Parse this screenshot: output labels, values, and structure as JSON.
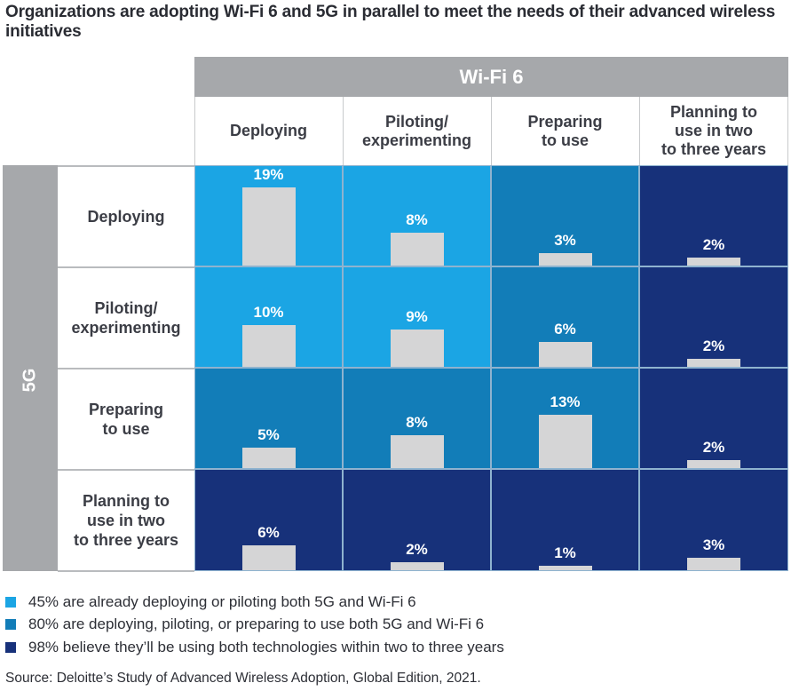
{
  "title": "Organizations are adopting Wi-Fi 6 and 5G in parallel to meet the needs of their advanced wireless initiatives",
  "colors": {
    "header_gray": "#a6a8ab",
    "bar_gray": "#d5d5d6",
    "tier1_light_blue": "#1ba5e4",
    "tier2_mid_blue": "#127db8",
    "tier3_dark_navy": "#17317a"
  },
  "chart_data": {
    "type": "heatmap",
    "title": "Organizations are adopting Wi-Fi 6 and 5G in parallel to meet the needs of their advanced wireless initiatives",
    "x_axis_title": "Wi-Fi 6",
    "y_axis_title": "5G",
    "x_categories": [
      "Deploying",
      "Piloting/\nexperimenting",
      "Preparing\nto use",
      "Planning to\nuse in two\nto three years"
    ],
    "y_categories": [
      "Deploying",
      "Piloting/\nexperimenting",
      "Preparing\nto use",
      "Planning to\nuse in two\nto three years"
    ],
    "unit": "%",
    "values": [
      [
        19,
        8,
        3,
        2
      ],
      [
        10,
        9,
        6,
        2
      ],
      [
        5,
        8,
        13,
        2
      ],
      [
        6,
        2,
        1,
        3
      ]
    ],
    "labels": [
      [
        "19%",
        "8%",
        "3%",
        "2%"
      ],
      [
        "10%",
        "9%",
        "6%",
        "2%"
      ],
      [
        "5%",
        "8%",
        "13%",
        "2%"
      ],
      [
        "6%",
        "2%",
        "1%",
        "3%"
      ]
    ],
    "cell_tier": [
      [
        1,
        1,
        2,
        3
      ],
      [
        1,
        1,
        2,
        3
      ],
      [
        2,
        2,
        2,
        3
      ],
      [
        3,
        3,
        3,
        3
      ]
    ],
    "legend": [
      {
        "tier": 1,
        "color": "#1ba5e4",
        "text": "45% are already deploying or piloting both 5G and Wi-Fi 6"
      },
      {
        "tier": 2,
        "color": "#127db8",
        "text": "80% are deploying, piloting, or preparing to use both 5G and Wi-Fi 6"
      },
      {
        "tier": 3,
        "color": "#17317a",
        "text": "98% believe they’ll be using both technologies within two to three years"
      }
    ],
    "legend_position": "bottom-left"
  },
  "source": "Source: Deloitte’s Study of Advanced Wireless Adoption, Global Edition, 2021."
}
